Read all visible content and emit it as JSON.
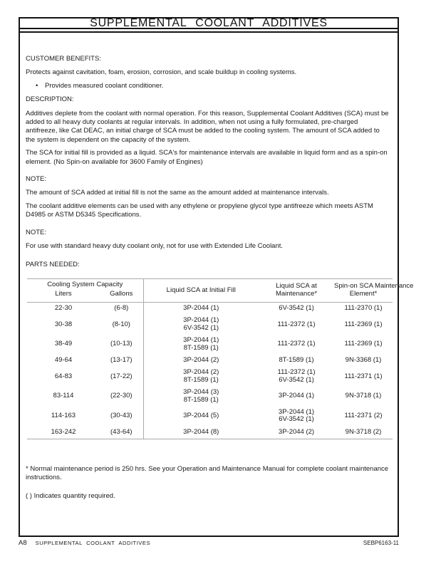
{
  "page": {
    "title": "SUPPLEMENTAL COOLANT ADDITIVES",
    "footer": {
      "page_code": "A8",
      "footer_title": "SUPPLEMENTAL COOLANT ADDITIVES",
      "doc_code": "SEBP6163-11"
    }
  },
  "sections": {
    "customer_benefits": {
      "heading": "CUSTOMER BENEFITS:",
      "intro": "Protects against cavitation, foam, erosion, corrosion, and scale buildup in cooling systems.",
      "bullet_glyph": "•",
      "bullets": [
        "Provides measured coolant conditioner."
      ]
    },
    "description": {
      "heading": "DESCRIPTION:",
      "paragraphs": [
        "Additives deplete from the coolant with normal operation. For this reason, Supplemental Coolant Additives (SCA) must be added to all heavy duty coolants at regular intervals. In addition, when not using a fully formulated, pre-charged antifreeze, like Cat DEAC, an initial charge of SCA must be added to the cooling system. The amount of SCA added to the system is dependent on the capacity of the system.",
        "The SCA for initial fill is provided as a liquid. SCA's for maintenance intervals are available in liquid form and as a spin-on element. (No Spin-on available for 3600 Family of Engines)"
      ]
    },
    "note1": {
      "heading": "NOTE:",
      "paragraphs": [
        "The amount of SCA added at initial fill is not the same as the amount added at maintenance intervals.",
        "The coolant additive elements can be used with any ethylene or propylene glycol type antifreeze which meets ASTM D4985 or ASTM D5345 Specifications."
      ]
    },
    "note2": {
      "heading": "NOTE:",
      "paragraphs": [
        "For use with standard heavy duty coolant only, not for use with Extended Life Coolant."
      ]
    },
    "parts_needed": {
      "heading": "PARTS NEEDED:"
    }
  },
  "table": {
    "header": {
      "group": "Cooling System Capacity",
      "liters": "Liters",
      "gallons": "Gallons",
      "initial_fill": "Liquid SCA at Initial Fill",
      "maintenance_lines": [
        "Liquid SCA at",
        "Maintenance*"
      ],
      "spin_on_lines": [
        "Spin-on SCA Maintenance",
        "Element*"
      ]
    },
    "rows": [
      [
        [
          "22-30"
        ],
        [
          "(6-8)"
        ],
        [
          "3P-2044 (1)"
        ],
        [
          "6V-3542 (1)"
        ],
        [
          "111-2370 (1)"
        ]
      ],
      [
        [
          "30-38"
        ],
        [
          "(8-10)"
        ],
        [
          "3P-2044 (1)",
          "6V-3542 (1)"
        ],
        [
          "111-2372 (1)"
        ],
        [
          "111-2369 (1)"
        ]
      ],
      [
        [
          "38-49"
        ],
        [
          "(10-13)"
        ],
        [
          "3P-2044 (1)",
          "8T-1589 (1)"
        ],
        [
          "111-2372 (1)"
        ],
        [
          "111-2369 (1)"
        ]
      ],
      [
        [
          "49-64"
        ],
        [
          "(13-17)"
        ],
        [
          "3P-2044 (2)"
        ],
        [
          "8T-1589 (1)"
        ],
        [
          "9N-3368 (1)"
        ]
      ],
      [
        [
          "64-83"
        ],
        [
          "(17-22)"
        ],
        [
          "3P-2044 (2)",
          "8T-1589 (1)"
        ],
        [
          "111-2372 (1)",
          "6V-3542 (1)"
        ],
        [
          "111-2371 (1)"
        ]
      ],
      [
        [
          "83-114"
        ],
        [
          "(22-30)"
        ],
        [
          "3P-2044 (3)",
          "8T-1589 (1)"
        ],
        [
          "3P-2044 (1)"
        ],
        [
          "9N-3718 (1)"
        ]
      ],
      [
        [
          "114-163"
        ],
        [
          "(30-43)"
        ],
        [
          "3P-2044 (5)"
        ],
        [
          "3P-2044 (1)",
          "6V-3542 (1)"
        ],
        [
          "111-2371 (2)"
        ]
      ],
      [
        [
          "163-242"
        ],
        [
          "(43-64)"
        ],
        [
          "3P-2044 (8)"
        ],
        [
          "3P-2044 (2)"
        ],
        [
          "9N-3718 (2)"
        ]
      ]
    ]
  },
  "footnotes": [
    "* Normal maintenance period is 250 hrs. See your Operation and Maintenance Manual for complete coolant maintenance instructions.",
    "( ) Indicates quantity required."
  ]
}
